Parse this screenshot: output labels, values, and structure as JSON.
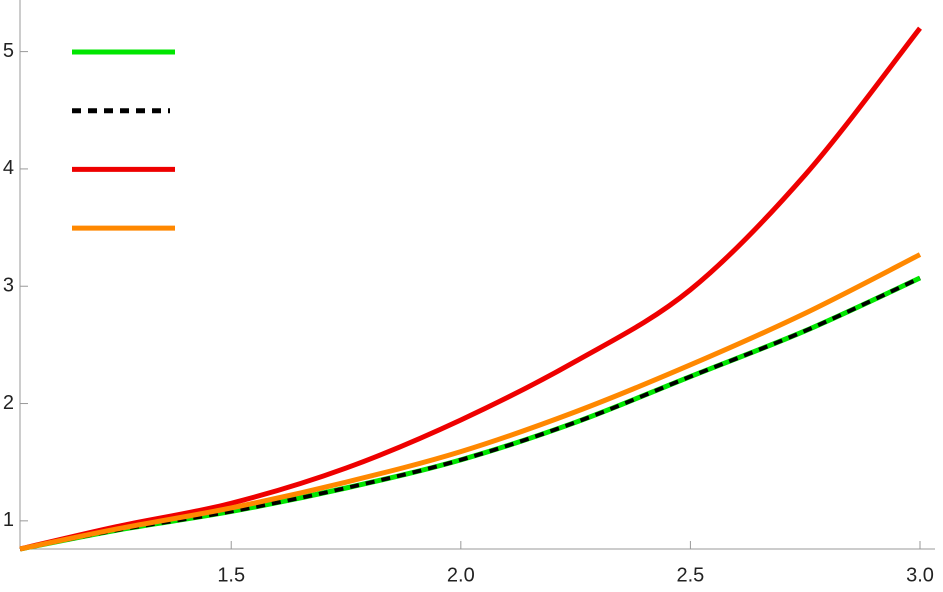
{
  "chart_data": {
    "type": "line",
    "x": [
      1.04,
      1.25,
      1.5,
      1.75,
      2.0,
      2.25,
      2.5,
      2.75,
      3.0
    ],
    "series": [
      {
        "color": "#00e600",
        "values": [
          0.76,
          0.92,
          1.08,
          1.28,
          1.52,
          1.84,
          2.23,
          2.62,
          3.07
        ]
      },
      {
        "color": "#000000",
        "dashed": true,
        "values": [
          0.76,
          0.92,
          1.08,
          1.28,
          1.52,
          1.84,
          2.23,
          2.62,
          3.07
        ]
      },
      {
        "color": "#ee0000",
        "values": [
          0.76,
          0.95,
          1.15,
          1.45,
          1.86,
          2.36,
          2.97,
          3.95,
          5.2
        ]
      },
      {
        "color": "#ff8800",
        "values": [
          0.76,
          0.93,
          1.11,
          1.33,
          1.59,
          1.93,
          2.33,
          2.77,
          3.27
        ]
      }
    ],
    "xlim": [
      1.04,
      3.0
    ],
    "xticks": [
      1.5,
      {
        "value": 2.0,
        "label": "2.0"
      },
      2.5,
      {
        "value": 3.0,
        "label": "3.0"
      }
    ],
    "ylim": [
      0.76,
      5.44
    ],
    "yticks": [
      1,
      2,
      3,
      4,
      5
    ],
    "legend": "top-left"
  }
}
